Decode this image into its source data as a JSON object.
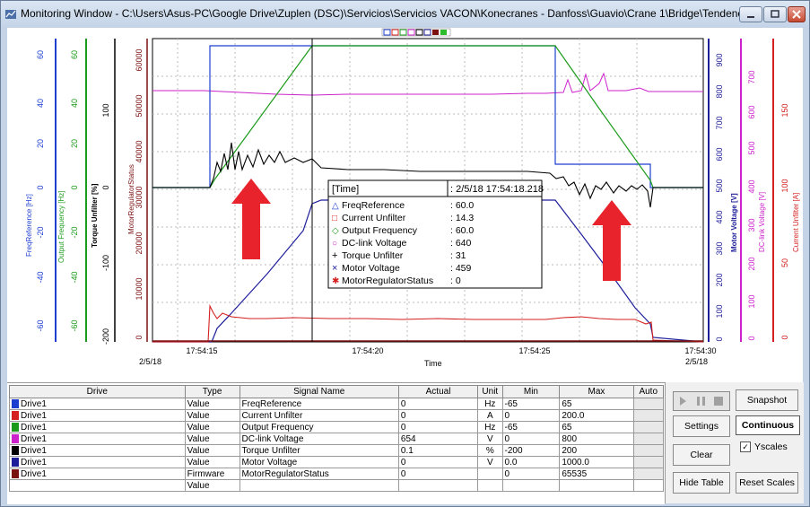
{
  "window": {
    "title": "Monitoring Window - C:\\Users\\Asus-PC\\Google Drive\\Zuplen (DSC)\\Servicios\\Servicios VACON\\Konecranes - Danfoss\\Guavio\\Crane 1\\Bridge\\Tendencia..."
  },
  "axes": {
    "freqref": {
      "label": "FreqReference [Hz]",
      "ticks": [
        "60",
        "40",
        "20",
        "0",
        "-20",
        "-40",
        "-60"
      ],
      "color": "#1d3fd0"
    },
    "outfreq": {
      "label": "Output Frequency [Hz]",
      "ticks": [
        "60",
        "40",
        "20",
        "0",
        "-20",
        "-40",
        "-60"
      ],
      "color": "#1b9b1b"
    },
    "torque": {
      "label": "Torque Unfilter [%]",
      "ticks": [
        "100",
        "0",
        "-100",
        "-200"
      ],
      "color": "#000000"
    },
    "motreg": {
      "label": "MotorRegulatorStatus",
      "ticks": [
        "60000",
        "50000",
        "40000",
        "30000",
        "20000",
        "10000",
        "0"
      ],
      "color": "#7a1010"
    },
    "motvolt": {
      "label": "Motor Voltage [V]",
      "ticks": [
        "900",
        "800",
        "700",
        "600",
        "500",
        "400",
        "300",
        "200",
        "100",
        "0"
      ],
      "color": "#1d1d9a"
    },
    "dclink": {
      "label": "DC-link Voltage [V]",
      "ticks": [
        "700",
        "600",
        "500",
        "400",
        "300",
        "200",
        "100",
        "0"
      ],
      "color": "#cc22cc"
    },
    "current": {
      "label": "Current Unfilter [A]",
      "ticks": [
        "150",
        "100",
        "50",
        "0"
      ],
      "color": "#d42020"
    }
  },
  "time_axis": {
    "label": "Time",
    "ticks": [
      "17:54:15",
      "17:54:20",
      "17:54:25",
      "17:54:30"
    ],
    "start_date": "2/5/18",
    "end_date": "2/5/18"
  },
  "tooltip": {
    "header_label": "[Time]",
    "header_value": ": 2/5/18 17:54:18.218",
    "rows": [
      {
        "marker": "△",
        "color": "#1d3fd0",
        "name": "FreqReference",
        "value": ": 60.0"
      },
      {
        "marker": "□",
        "color": "#d42020",
        "name": "Current Unfilter",
        "value": ": 14.3"
      },
      {
        "marker": "◇",
        "color": "#1b9b1b",
        "name": "Output Frequency",
        "value": ": 60.0"
      },
      {
        "marker": "○",
        "color": "#cc22cc",
        "name": "DC-link Voltage",
        "value": ": 640"
      },
      {
        "marker": "+",
        "color": "#000000",
        "name": "Torque Unfilter",
        "value": ": 31"
      },
      {
        "marker": "×",
        "color": "#1d1d9a",
        "name": "Motor Voltage",
        "value": ": 459"
      },
      {
        "marker": "✱",
        "color": "#7a1010",
        "name": "MotorRegulatorStatus",
        "value": ": 0"
      }
    ]
  },
  "table": {
    "headers": [
      "Drive",
      "Type",
      "Signal Name",
      "Actual",
      "Unit",
      "Min",
      "Max",
      "Auto"
    ],
    "rows": [
      {
        "color": "#1d3fd0",
        "drive": "Drive1",
        "type": "Value",
        "signal": "FreqReference",
        "actual": "0",
        "unit": "Hz",
        "min": "-65",
        "max": "65"
      },
      {
        "color": "#d42020",
        "drive": "Drive1",
        "type": "Value",
        "signal": "Current Unfilter",
        "actual": "0",
        "unit": "A",
        "min": "0",
        "max": "200.0"
      },
      {
        "color": "#1b9b1b",
        "drive": "Drive1",
        "type": "Value",
        "signal": "Output Frequency",
        "actual": "0",
        "unit": "Hz",
        "min": "-65",
        "max": "65"
      },
      {
        "color": "#cc22cc",
        "drive": "Drive1",
        "type": "Value",
        "signal": "DC-link Voltage",
        "actual": "654",
        "unit": "V",
        "min": "0",
        "max": "800"
      },
      {
        "color": "#000000",
        "drive": "Drive1",
        "type": "Value",
        "signal": "Torque Unfilter",
        "actual": "0.1",
        "unit": "%",
        "min": "-200",
        "max": "200"
      },
      {
        "color": "#1d1d9a",
        "drive": "Drive1",
        "type": "Value",
        "signal": "Motor Voltage",
        "actual": "0",
        "unit": "V",
        "min": "0.0",
        "max": "1000.0"
      },
      {
        "color": "#7a1010",
        "drive": "Drive1",
        "type": "Firmware",
        "signal": "MotorRegulatorStatus",
        "actual": "0",
        "unit": "",
        "min": "0",
        "max": "65535"
      },
      {
        "color": "",
        "drive": "",
        "type": "Value",
        "signal": "",
        "actual": "",
        "unit": "",
        "min": "",
        "max": ""
      }
    ]
  },
  "controls": {
    "snapshot": "Snapshot",
    "settings": "Settings",
    "mode": "Continuous",
    "clear": "Clear",
    "yscales": "Yscales",
    "yscales_checked": "✓",
    "hide_table": "Hide Table",
    "reset_scales": "Reset Scales"
  }
}
